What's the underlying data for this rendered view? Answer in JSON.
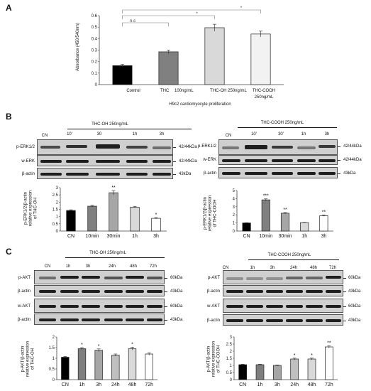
{
  "panels": {
    "a": "A",
    "b": "B",
    "c": "C"
  },
  "panelA": {
    "ylabel": "Absorbance (450/540nm)",
    "xlabel": "H9c2 cardiomyocyte proliferation",
    "sig": [
      "n.s",
      "*",
      "*"
    ],
    "thc_prefix": "THC",
    "thc_dose": "100ng/mL",
    "cooh_line1": "THC-COOH",
    "cooh_line2": "250ng/mL"
  },
  "panelB": {
    "left": {
      "treatment": "THC-OH 250ng/mL",
      "lanes": [
        "CN",
        "10'",
        "30",
        "1h",
        "3h"
      ],
      "rows": [
        "p-ERK1/2",
        "w-ERK",
        "β-actin"
      ],
      "sizes": [
        "42/44kDa",
        "42/44kDa",
        "43kDa"
      ],
      "ylabel_1": "p-ERK1/2/β-actin",
      "ylabel_2": "relative expression",
      "ylabel_3": "of THC-OH"
    },
    "right": {
      "treatment": "THC-COOH 250ng/mL",
      "lanes": [
        "CN",
        "10'",
        "30'",
        "1h",
        "3h"
      ],
      "rows": [
        "p-ERK1/2",
        "w-ERK",
        "β-actin"
      ],
      "sizes": [
        "42/44kDa",
        "42/44kDa",
        "43kDa"
      ],
      "ylabel_1": "p-ERK1/2/β-actin",
      "ylabel_2": "relative expression",
      "ylabel_3": "of THC-COOH"
    }
  },
  "panelC": {
    "left": {
      "treatment": "THC-OH 250ng/mL",
      "lanes": [
        "CN",
        "1h",
        "3h",
        "24h",
        "48h",
        "72h"
      ],
      "rows": [
        "p-AKT",
        "β-actin",
        "w-AKT",
        "β-actin"
      ],
      "sizes": [
        "60kDa",
        "43kDa",
        "60kDa",
        "43kDa"
      ],
      "ylabel_1": "p-AKT/β-actin",
      "ylabel_2": "relative expression",
      "ylabel_3": "of THC-OH"
    },
    "right": {
      "treatment": "THC-COOH 250ng/mL",
      "lanes": [
        "CN",
        "1h",
        "3h",
        "24h",
        "48h",
        "72h"
      ],
      "rows": [
        "p-AKT",
        "β-actin",
        "w-AKT",
        "β-actin"
      ],
      "sizes": [
        "60kDa",
        "43kDa",
        "60kDa",
        "43kDa"
      ],
      "ylabel_1": "p-AKT/β-actin",
      "ylabel_2": "relative expression",
      "ylabel_3": "of THC-COOH"
    }
  },
  "chart_data": [
    {
      "id": "A",
      "type": "bar",
      "categories": [
        "Control",
        "THC 100ng/mL",
        "THC-OH 250ng/mL",
        "THC-COOH 250ng/mL"
      ],
      "values": [
        0.165,
        0.285,
        0.495,
        0.44
      ],
      "errors": [
        0.01,
        0.015,
        0.03,
        0.025
      ],
      "colors": [
        "#000000",
        "#808080",
        "#d9d9d9",
        "#f2f2f2"
      ],
      "xlabel": "H9c2 cardiomyocyte proliferation",
      "ylabel": "Absorbance (450/540nm)",
      "ylim": [
        0,
        0.6
      ],
      "yticks": [
        "0",
        "0.1",
        "0.2",
        "0.3",
        "0.4",
        "0.5",
        "0.6"
      ],
      "annotations": [
        "n.s",
        "*",
        "*"
      ],
      "grid": false
    },
    {
      "id": "B-left",
      "type": "bar",
      "categories": [
        "CN",
        "10min",
        "30min",
        "1h",
        "3h"
      ],
      "values": [
        1.42,
        1.72,
        2.65,
        1.65,
        0.88
      ],
      "errors": [
        0.05,
        0.06,
        0.15,
        0.06,
        0.05
      ],
      "colors": [
        "#000000",
        "#7f7f7f",
        "#a6a6a6",
        "#d9d9d9",
        "#ffffff"
      ],
      "stars": [
        "",
        "",
        "**",
        "",
        "*"
      ],
      "ylabel": "p-ERK1/2/β-actin relative expression of THC-OH",
      "ylim": [
        0,
        3
      ],
      "yticks": [
        "0",
        "0.5",
        "1",
        "1.5",
        "2",
        "2.5",
        "3"
      ]
    },
    {
      "id": "B-right",
      "type": "bar",
      "categories": [
        "CN",
        "10min",
        "30min",
        "1h",
        "3h"
      ],
      "values": [
        1.0,
        3.85,
        2.2,
        1.05,
        1.9
      ],
      "errors": [
        0.03,
        0.12,
        0.08,
        0.03,
        0.08
      ],
      "colors": [
        "#000000",
        "#7f7f7f",
        "#a6a6a6",
        "#d9d9d9",
        "#ffffff"
      ],
      "stars": [
        "",
        "***",
        "**",
        "",
        "**"
      ],
      "ylabel": "p-ERK1/2/β-actin relative expression of THC-COOH",
      "ylim": [
        0,
        5
      ],
      "yticks": [
        "0",
        "1",
        "2",
        "3",
        "4",
        "5"
      ]
    },
    {
      "id": "C-left",
      "type": "bar",
      "categories": [
        "CN",
        "1h",
        "3h",
        "24h",
        "48h",
        "72h"
      ],
      "values": [
        1.05,
        1.45,
        1.38,
        1.15,
        1.45,
        1.2
      ],
      "errors": [
        0.03,
        0.05,
        0.06,
        0.05,
        0.06,
        0.06
      ],
      "colors": [
        "#000000",
        "#7f7f7f",
        "#a6a6a6",
        "#bfbfbf",
        "#d9d9d9",
        "#ffffff"
      ],
      "stars": [
        "",
        "*",
        "*",
        "",
        "*",
        ""
      ],
      "ylabel": "p-AKT/β-actin relative expression of THC-OH",
      "ylim": [
        0,
        2
      ],
      "yticks": [
        "0",
        "0.5",
        "1",
        "1.5",
        "2"
      ]
    },
    {
      "id": "C-right",
      "type": "bar",
      "categories": [
        "CN",
        "1h",
        "3h",
        "24h",
        "48h",
        "72h"
      ],
      "values": [
        1.05,
        1.05,
        1.0,
        1.45,
        1.45,
        2.3
      ],
      "errors": [
        0.03,
        0.03,
        0.03,
        0.06,
        0.06,
        0.08
      ],
      "colors": [
        "#000000",
        "#7f7f7f",
        "#a6a6a6",
        "#bfbfbf",
        "#d9d9d9",
        "#ffffff"
      ],
      "stars": [
        "",
        "",
        "",
        "*",
        "*",
        "**"
      ],
      "ylabel": "p-AKT/β-actin relative expression of THC-COOH",
      "ylim": [
        0,
        3
      ],
      "yticks": [
        "0",
        "0.5",
        "1",
        "1.5",
        "2",
        "2.5",
        "3"
      ]
    }
  ]
}
